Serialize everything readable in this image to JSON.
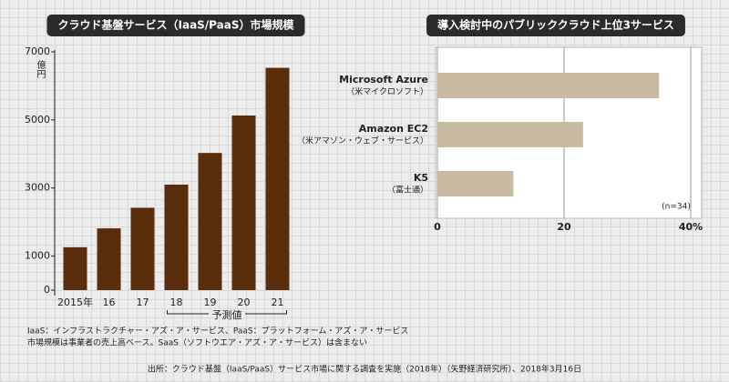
{
  "chart_data": [
    {
      "type": "bar",
      "title": "クラウド基盤サービス（IaaS/PaaS）市場規模",
      "unit": "億円",
      "categories": [
        "2015年",
        "16",
        "17",
        "18",
        "19",
        "20",
        "21"
      ],
      "values": [
        1260,
        1815,
        2420,
        3100,
        4030,
        5130,
        6530
      ],
      "color": "#5a2d0c",
      "ylim": [
        0,
        7000
      ],
      "yticks": [
        0,
        1000,
        3000,
        5000,
        7000
      ],
      "annotation": {
        "text": "予測値",
        "start": "18",
        "end": "21"
      }
    },
    {
      "type": "hbar",
      "title": "導入検討中のパブリッククラウド上位3サービス",
      "categories": [
        "Microsoft Azure",
        "Amazon EC2",
        "K5"
      ],
      "category_notes": [
        "（米マイクロソフト）",
        "（米アマゾン・ウェブ・サービス）",
        "（富士通）"
      ],
      "values": [
        35,
        23,
        12
      ],
      "color": "#c9baa3",
      "xlim": [
        0,
        40
      ],
      "xticks": [
        0,
        20,
        {
          "value": 40,
          "label": "40%"
        }
      ],
      "grid": true,
      "note": "(n=34)"
    }
  ],
  "notes": [
    "IaaS：インフラストラクチャー・アズ・ア・サービス、PaaS：プラットフォーム・アズ・ア・サービス",
    "市場規模は事業者の売上高ベース。SaaS（ソフトウエア・アズ・ア・サービス）は含まない"
  ],
  "source": "出所：クラウド基盤（IaaS/PaaS）サービス市場に関する調査を実施（2018年）（矢野経済研究所）、2018年3月16日"
}
